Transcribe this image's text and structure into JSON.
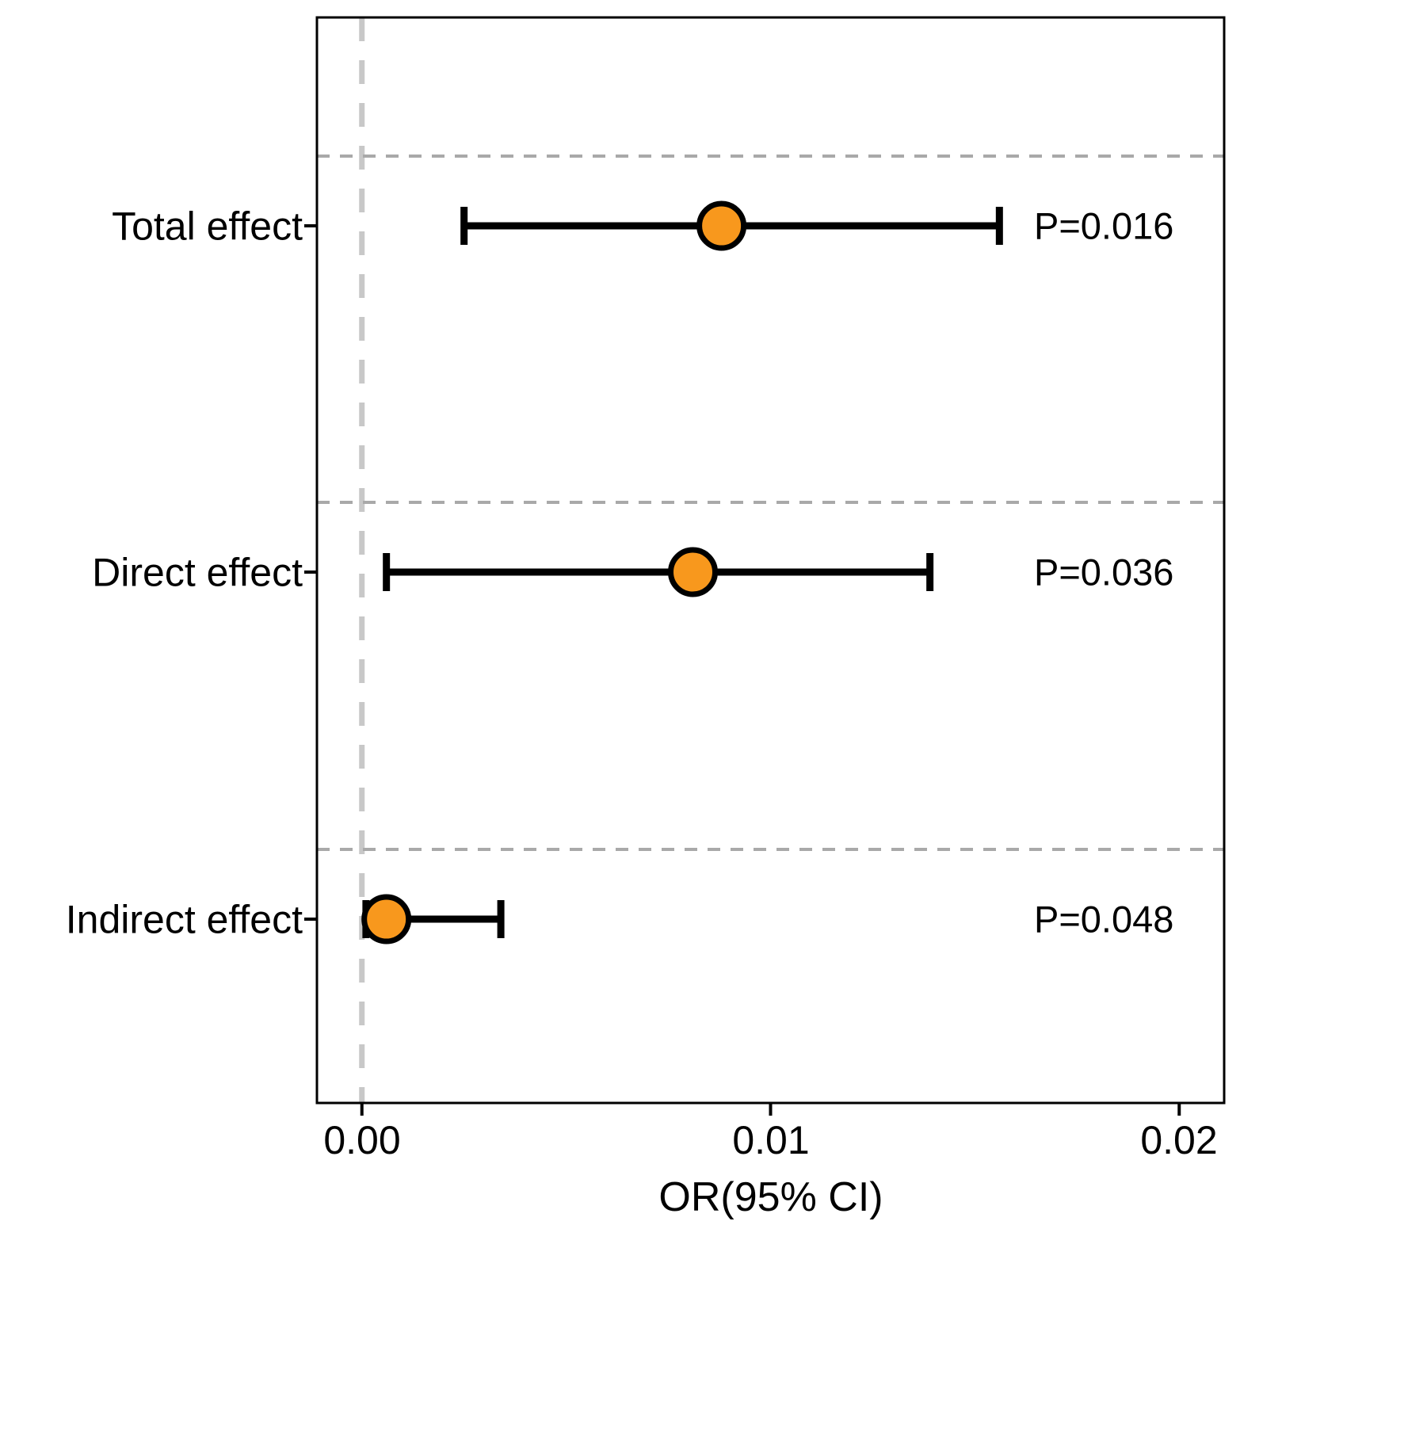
{
  "chart_data": {
    "type": "scatter",
    "subtype": "forest-plot",
    "title": "",
    "xlabel": "OR(95% CI)",
    "xlim": [
      -0.0011,
      0.0211
    ],
    "reference_line_x": 0.0,
    "grid": "dashed horizontal gridlines, dashed vertical reference line at 0",
    "legend": null,
    "x_ticks": [
      {
        "value": 0.0,
        "label": "0.00"
      },
      {
        "value": 0.01,
        "label": "0.01"
      },
      {
        "value": 0.02,
        "label": "0.02"
      }
    ],
    "rows": [
      {
        "label": "Total effect",
        "or": 0.0088,
        "ci_low": 0.0025,
        "ci_high": 0.0156,
        "p_label": "P=0.016"
      },
      {
        "label": "Direct effect",
        "or": 0.0081,
        "ci_low": 0.0006,
        "ci_high": 0.0139,
        "p_label": "P=0.036"
      },
      {
        "label": "Indirect effect",
        "or": 0.0006,
        "ci_low": 0.0001,
        "ci_high": 0.0034,
        "p_label": "P=0.048"
      }
    ],
    "colors": {
      "point_fill": "#F8981D",
      "point_stroke": "#000000",
      "errorbar": "#000000",
      "reference_line": "#C8C8C8",
      "grid_line": "#A9A9A9",
      "panel_border": "#000000",
      "text": "#000000"
    }
  }
}
